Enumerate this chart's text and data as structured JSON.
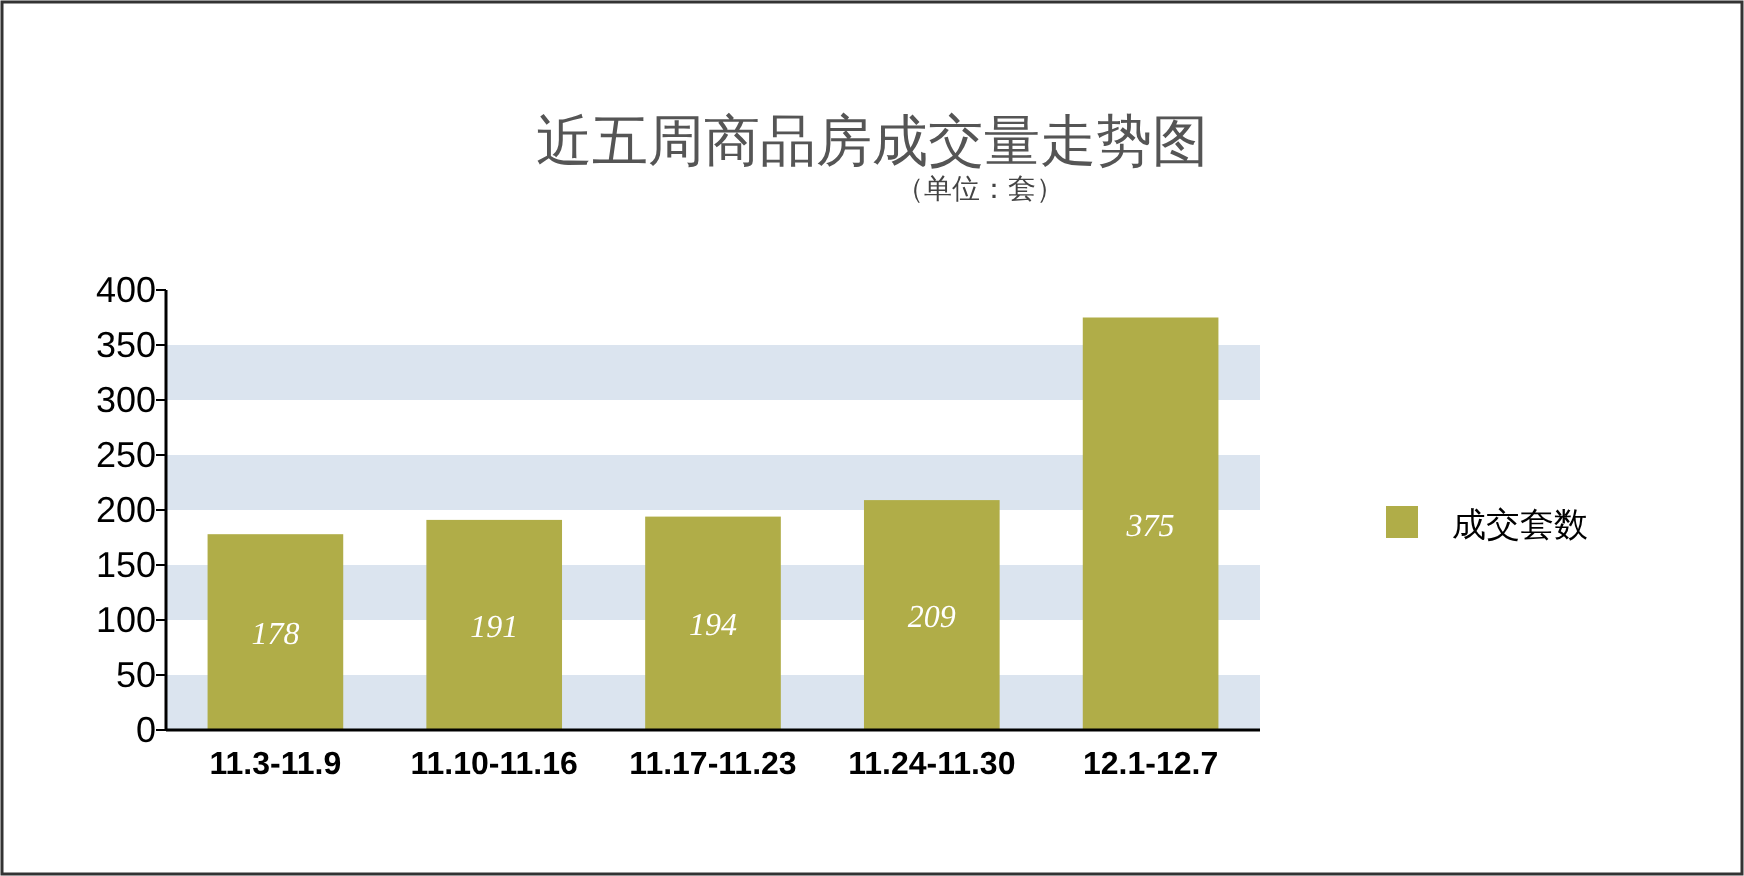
{
  "chart_data": {
    "type": "bar",
    "title": "近五周商品房成交量走势图",
    "subtitle": "（单位：套）",
    "categories": [
      "11.3-11.9",
      "11.10-11.16",
      "11.17-11.23",
      "11.24-11.30",
      "12.1-12.7"
    ],
    "series": [
      {
        "name": "成交套数",
        "color": "#b0ad48",
        "values": [
          178,
          191,
          194,
          209,
          375
        ]
      }
    ],
    "ylim": [
      0,
      400
    ],
    "yticks": [
      0,
      50,
      100,
      150,
      200,
      250,
      300,
      350,
      400
    ],
    "bands": [
      {
        "axis": "y",
        "from": 0,
        "to": 50,
        "color": "#dbe4ef"
      },
      {
        "axis": "y",
        "from": 100,
        "to": 150,
        "color": "#dbe4ef"
      },
      {
        "axis": "y",
        "from": 200,
        "to": 250,
        "color": "#dbe4ef"
      },
      {
        "axis": "y",
        "from": 300,
        "to": 350,
        "color": "#dbe4ef"
      }
    ],
    "grid": false,
    "data_labels": true,
    "legend": "right"
  }
}
